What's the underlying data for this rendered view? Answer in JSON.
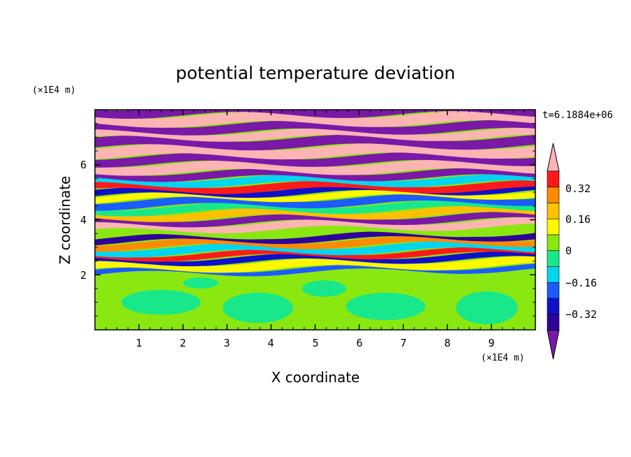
{
  "chart_data": {
    "type": "heatmap",
    "title": "potential temperature deviation",
    "xlabel": "X coordinate",
    "ylabel": "Z coordinate",
    "x_unit": "(×1E4 m)",
    "y_unit": "(×1E4 m)",
    "time_label": "t=6.1884e+06",
    "xlim": [
      0,
      10
    ],
    "ylim": [
      0,
      8
    ],
    "x_ticks": [
      "1",
      "2",
      "3",
      "4",
      "5",
      "6",
      "7",
      "8",
      "9"
    ],
    "y_ticks": [
      "2",
      "4",
      "6"
    ],
    "colorbar": {
      "levels": [
        -0.48,
        -0.4,
        -0.32,
        -0.24,
        -0.16,
        -0.08,
        0,
        0.08,
        0.16,
        0.24,
        0.32,
        0.4,
        0.48
      ],
      "labels": [
        "0.32",
        "0.16",
        "0",
        "−0.16",
        "−0.32"
      ],
      "colors": [
        "#7a18a8",
        "#30009a",
        "#1010c8",
        "#1a5cff",
        "#00d6f0",
        "#18e88a",
        "#8ae810",
        "#fff800",
        "#ffc000",
        "#ff8a00",
        "#ff1a1a",
        "#ffb4b4"
      ]
    }
  }
}
